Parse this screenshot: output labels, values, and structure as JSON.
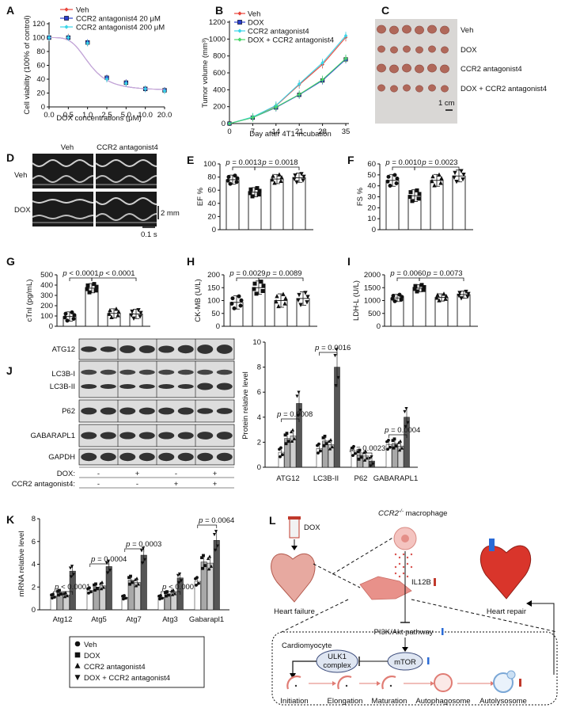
{
  "panel_letters": [
    "A",
    "B",
    "C",
    "D",
    "E",
    "F",
    "G",
    "H",
    "I",
    "J",
    "K",
    "L"
  ],
  "panelA": {
    "legend": [
      "Veh",
      "CCR2 antagonist4 20 μM",
      "CCR2 antagonist4 200 μM"
    ],
    "ylabel": "Cell viability (100% of control)",
    "xlabel": "DOX  concentrations (μM)",
    "xticks": [
      "0.0",
      "0.5",
      "1.0",
      "2.5",
      "5.0",
      "10.0",
      "20.0"
    ],
    "yticks": [
      "0",
      "20",
      "40",
      "60",
      "80",
      "100",
      "120"
    ]
  },
  "panelB": {
    "legend": [
      "Veh",
      "DOX",
      "CCR2 antagonist4",
      "DOX + CCR2 antagonist4"
    ],
    "ylabel": "Tumor volume (mm³)",
    "xlabel": "Day after 4T1 incubation",
    "xticks": [
      "0",
      "7",
      "14",
      "21",
      "28",
      "35"
    ],
    "yticks": [
      "0",
      "200",
      "400",
      "600",
      "800",
      "1000",
      "1200"
    ]
  },
  "panelC": {
    "labels": [
      "Veh",
      "DOX",
      "CCR2 antagonist4",
      "DOX + CCR2 antagonist4"
    ],
    "scale": "1 cm"
  },
  "panelD": {
    "cols": [
      "Veh",
      "CCR2 antagonist4"
    ],
    "rows": [
      "Veh",
      "DOX"
    ],
    "scale_v": "2 mm",
    "scale_h": "0.1 s"
  },
  "panelE": {
    "ylabel": "EF %",
    "yticks": [
      "0",
      "20",
      "40",
      "60",
      "80",
      "100"
    ],
    "p1": "p = 0.0013",
    "p2": "p = 0.0018"
  },
  "panelF": {
    "ylabel": "FS %",
    "yticks": [
      "0",
      "10",
      "20",
      "30",
      "40",
      "50",
      "60"
    ],
    "p1": "p = 0.0010",
    "p2": "p = 0.0023"
  },
  "panelG": {
    "ylabel": "cTnI (pg/mL)",
    "yticks": [
      "0",
      "100",
      "200",
      "300",
      "400",
      "500"
    ],
    "p1": "p < 0.0001",
    "p2": "p < 0.0001"
  },
  "panelH": {
    "ylabel": "CK-MB (U/L)",
    "yticks": [
      "0",
      "50",
      "100",
      "150",
      "200"
    ],
    "p1": "p = 0.0029",
    "p2": "p = 0.0089"
  },
  "panelI": {
    "ylabel": "LDH-L (U/L)",
    "yticks": [
      "0",
      "500",
      "1000",
      "1500",
      "2000"
    ],
    "p1": "p = 0.0060",
    "p2": "p = 0.0073"
  },
  "panelJ": {
    "blot_labels": [
      "ATG12",
      "LC3B-I",
      "LC3B-II",
      "P62",
      "GABARAPL1",
      "GAPDH"
    ],
    "dox_label": "DOX:",
    "ccr2_label": "CCR2 antagonist4:",
    "dox_signs": [
      "-",
      "+",
      "-",
      "+"
    ],
    "ccr2_signs": [
      "-",
      "-",
      "+",
      "+"
    ],
    "ylabel": "Protein relative level",
    "yticks": [
      "0",
      "2",
      "4",
      "6",
      "8",
      "10"
    ],
    "groups": [
      "ATG12",
      "LC3B-II",
      "P62",
      "GABARAPL1"
    ],
    "pvals": [
      "p = 0.0008",
      "p = 0.0016",
      "p = 0.0023",
      "p = 0.0004"
    ]
  },
  "panelK": {
    "ylabel": "mRNA relative level",
    "yticks": [
      "0",
      "2",
      "4",
      "6",
      "8"
    ],
    "groups": [
      "Atg12",
      "Atg5",
      "Atg7",
      "Atg3",
      "Gabarapl1"
    ],
    "pvals": [
      "p < 0.0001",
      "p = 0.0004",
      "p = 0.0003",
      "p < 0.0001",
      "p = 0.0064"
    ],
    "legend": [
      "Veh",
      "DOX",
      "CCR2 antagonist4",
      "DOX + CCR2 antagonist4"
    ]
  },
  "panelL": {
    "dox": "DOX",
    "macrophage": "CCR2",
    "macrophage_sup": "-/-",
    "macrophage_suffix": " macrophage",
    "il12b": "IL12B",
    "heart_failure": "Heart failure",
    "heart_repair": "Heart repair",
    "cardiomyocyte": "Cardiomyocyte",
    "pi3k": "PI3K/Akt pathway",
    "ulk1_line1": "ULK1",
    "ulk1_line2": "complex",
    "mtor": "mTOR",
    "stages": [
      "Initiation",
      "Elongation",
      "Maturation",
      "Autophagosome",
      "Autolysosome"
    ]
  },
  "colors": {
    "veh": "#e8443a",
    "dox": "#2a3fd0",
    "ccr2": "#3ad6e8",
    "combo": "#4bd66a",
    "dark_bar": "#555555",
    "mid_bar": "#a8a8a8",
    "light_bar": "#d0d0d0"
  },
  "chart_data": [
    {
      "type": "line",
      "panel": "A",
      "x": [
        0,
        0.5,
        1,
        2.5,
        5,
        10,
        20
      ],
      "series": [
        {
          "name": "Veh",
          "values": [
            100,
            101,
            92,
            40,
            35,
            26,
            24
          ]
        },
        {
          "name": "CCR2 antagonist4 20 μM",
          "values": [
            100,
            100,
            93,
            42,
            35,
            26,
            24
          ]
        },
        {
          "name": "CCR2 antagonist4 200 μM",
          "values": [
            100,
            100,
            92,
            40,
            34,
            26,
            23
          ]
        }
      ],
      "ylim": [
        0,
        120
      ]
    },
    {
      "type": "line",
      "panel": "B",
      "x": [
        0,
        7,
        14,
        21,
        28,
        35
      ],
      "series": [
        {
          "name": "Veh",
          "values": [
            0,
            75,
            210,
            460,
            700,
            1020
          ]
        },
        {
          "name": "DOX",
          "values": [
            0,
            70,
            190,
            340,
            510,
            760
          ]
        },
        {
          "name": "CCR2 antagonist4",
          "values": [
            0,
            78,
            215,
            470,
            720,
            1040
          ]
        },
        {
          "name": "DOX + CCR2 antagonist4",
          "values": [
            0,
            70,
            195,
            345,
            520,
            770
          ]
        }
      ],
      "ylim": [
        0,
        1200
      ]
    },
    {
      "type": "bar",
      "panel": "E",
      "categories": [
        "Veh",
        "DOX",
        "CCR2 antagonist4",
        "DOX + CCR2 antagonist4"
      ],
      "values": [
        76,
        57,
        77,
        79
      ],
      "ylim": [
        0,
        100
      ]
    },
    {
      "type": "bar",
      "panel": "F",
      "categories": [
        "Veh",
        "DOX",
        "CCR2 antagonist4",
        "DOX + CCR2 antagonist4"
      ],
      "values": [
        45,
        31,
        45,
        49
      ],
      "ylim": [
        0,
        60
      ]
    },
    {
      "type": "bar",
      "panel": "G",
      "categories": [
        "Veh",
        "DOX",
        "CCR2 antagonist4",
        "DOX + CCR2 antagonist4"
      ],
      "values": [
        95,
        370,
        125,
        120
      ],
      "ylim": [
        0,
        500
      ]
    },
    {
      "type": "bar",
      "panel": "H",
      "categories": [
        "Veh",
        "DOX",
        "CCR2 antagonist4",
        "DOX + CCR2 antagonist4"
      ],
      "values": [
        93,
        150,
        100,
        108
      ],
      "ylim": [
        0,
        200
      ]
    },
    {
      "type": "bar",
      "panel": "I",
      "categories": [
        "Veh",
        "DOX",
        "CCR2 antagonist4",
        "DOX + CCR2 antagonist4"
      ],
      "values": [
        1100,
        1480,
        1120,
        1230
      ],
      "ylim": [
        0,
        2000
      ]
    },
    {
      "type": "bar",
      "panel": "J",
      "categories": [
        "ATG12",
        "LC3B-II",
        "P62",
        "GABARAPL1"
      ],
      "series": [
        {
          "name": "Veh",
          "values": [
            1.2,
            1.5,
            1.3,
            1.8
          ]
        },
        {
          "name": "DOX",
          "values": [
            2.3,
            2.1,
            1.0,
            1.9
          ]
        },
        {
          "name": "CCR2 antagonist4",
          "values": [
            2.5,
            1.8,
            0.9,
            1.7
          ]
        },
        {
          "name": "DOX + CCR2 antagonist4",
          "values": [
            5.1,
            8.0,
            0.5,
            4.0
          ]
        }
      ],
      "ylim": [
        0,
        10
      ]
    },
    {
      "type": "bar",
      "panel": "K",
      "categories": [
        "Atg12",
        "Atg5",
        "Atg7",
        "Atg3",
        "Gabarapl1"
      ],
      "series": [
        {
          "name": "Veh",
          "values": [
            1.2,
            1.7,
            1.1,
            1.1,
            2.5
          ]
        },
        {
          "name": "DOX",
          "values": [
            1.5,
            2.0,
            2.6,
            1.4,
            4.2
          ]
        },
        {
          "name": "CCR2 antagonist4",
          "values": [
            1.3,
            2.1,
            2.4,
            1.5,
            4.1
          ]
        },
        {
          "name": "DOX + CCR2 antagonist4",
          "values": [
            3.4,
            3.8,
            4.8,
            2.8,
            6.1
          ]
        }
      ],
      "ylim": [
        0,
        8
      ]
    }
  ]
}
